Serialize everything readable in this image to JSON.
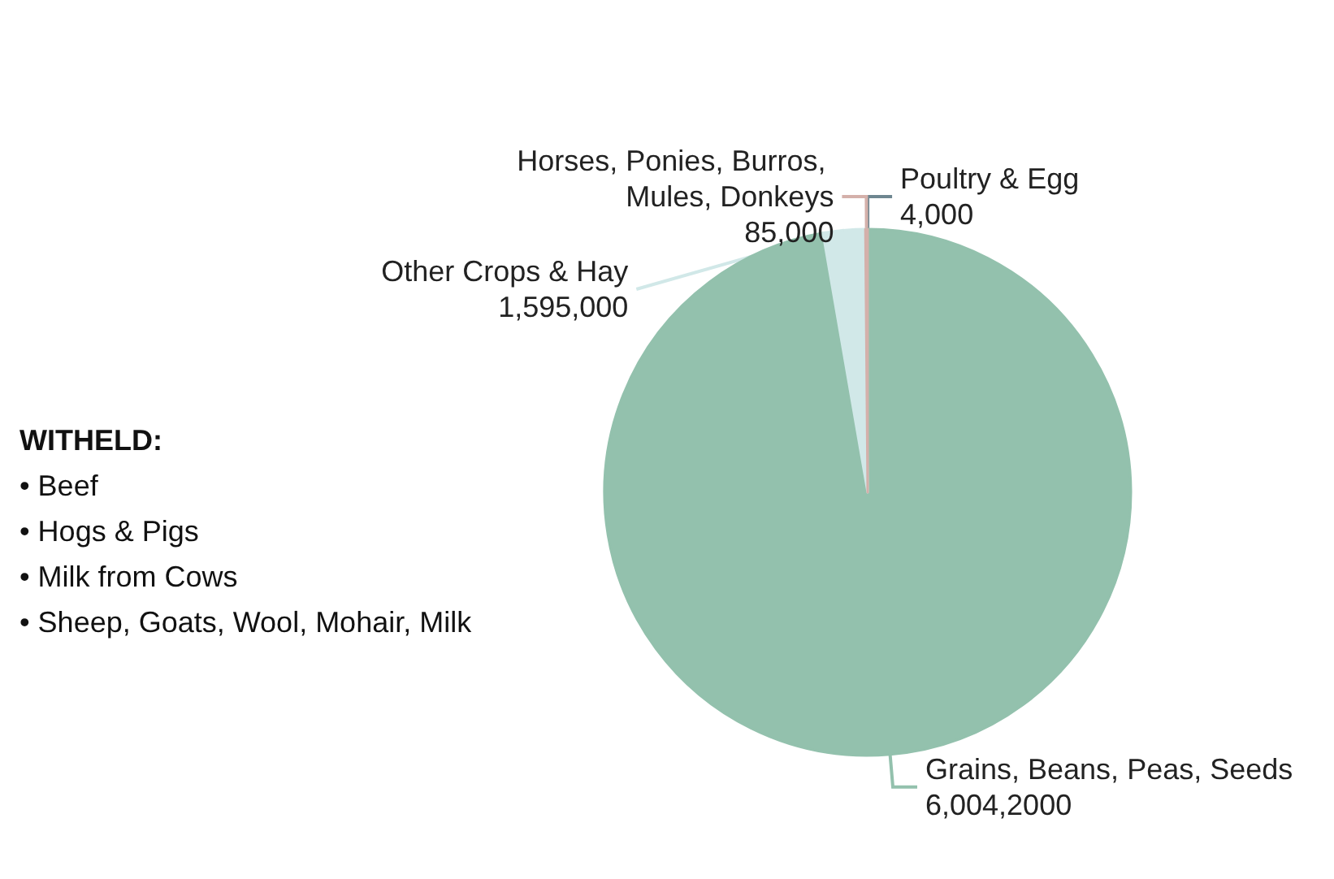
{
  "chart_data": {
    "type": "pie",
    "categories": [
      "Poultry & Egg",
      "Grains, Beans, Peas, Seeds",
      "Other Crops & Hay",
      "Horses, Ponies, Burros, Mules, Donkeys"
    ],
    "values": [
      4000,
      60042000,
      1595000,
      85000
    ],
    "value_labels": [
      "4,000",
      "6,004,2000",
      "1,595,000",
      "85,000"
    ],
    "colors": [
      "#6e8690",
      "#93c1ad",
      "#d1e8e8",
      "#d4b0aa"
    ],
    "legend": false,
    "annotations": [
      "WITHELD:",
      "• Beef",
      "• Hogs & Pigs",
      "• Milk from Cows",
      "• Sheep, Goats, Wool, Mohair, Milk"
    ]
  }
}
